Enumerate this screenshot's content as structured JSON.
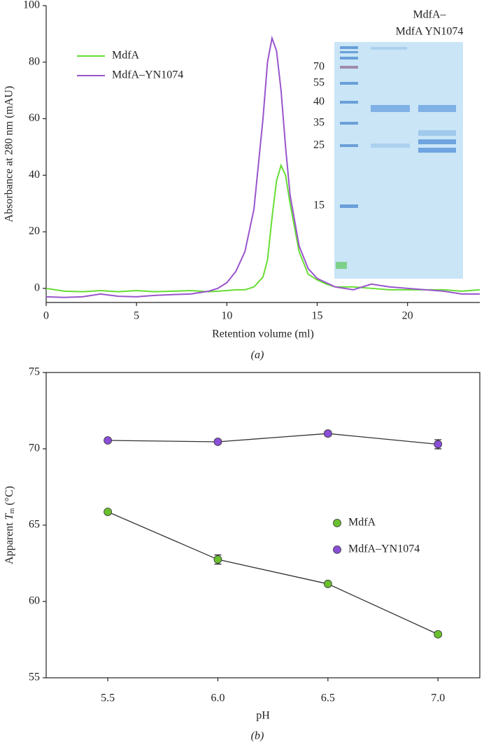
{
  "chart_data": [
    {
      "type": "line",
      "caption": "(a)",
      "xlabel": "Retention volume (ml)",
      "ylabel": "Absorbance at 280 nm (mAU)",
      "xlim": [
        0,
        24
      ],
      "ylim": [
        -5,
        100
      ],
      "xticks": [
        0,
        5,
        10,
        15,
        20
      ],
      "yticks": [
        0,
        20,
        40,
        60,
        80,
        100
      ],
      "legend": "upper left",
      "markers": false,
      "box": false,
      "x": [
        0,
        1,
        2,
        3,
        4,
        5,
        6,
        7,
        8,
        9,
        9.5,
        10,
        10.5,
        11,
        11.5,
        12,
        12.25,
        12.5,
        12.75,
        13,
        13.25,
        13.5,
        14,
        14.5,
        15,
        15.5,
        16,
        17,
        18,
        19,
        20,
        21,
        22,
        23,
        24
      ],
      "series": [
        {
          "name": "MdfA",
          "color": "#66dd33",
          "values": [
            0,
            -1,
            -1.2,
            -0.8,
            -1.2,
            -0.8,
            -1.2,
            -1,
            -0.8,
            -1.2,
            -1,
            -0.8,
            -0.5,
            -0.5,
            0.5,
            4,
            10,
            25,
            38,
            43.5,
            40,
            30,
            13,
            5,
            3,
            1.5,
            0.5,
            0.5,
            0,
            -0.5,
            -0.5,
            -0.5,
            -0.5,
            -1,
            -0.5
          ]
        },
        {
          "name": "MdfA–YN1074",
          "color": "#9955cc",
          "values": [
            -3,
            -3.2,
            -3,
            -2,
            -2.8,
            -3,
            -2.5,
            -2.2,
            -2,
            -1,
            0,
            2,
            6,
            13,
            28,
            60,
            80,
            88.5,
            84,
            70,
            50,
            33,
            15,
            7,
            3.5,
            2,
            0.5,
            -0.5,
            1.5,
            0.5,
            0,
            -0.5,
            -1,
            -2,
            -2
          ]
        }
      ],
      "inset_title": [
        "MdfA–",
        "MdfA YN1074"
      ],
      "gel_markers": [
        70,
        55,
        40,
        35,
        25,
        15
      ]
    },
    {
      "type": "line",
      "caption": "(b)",
      "xlabel": "pH",
      "ylabel": [
        "Apparent",
        "T",
        "m",
        "(°C)"
      ],
      "xlim": [
        5.22,
        7.19
      ],
      "ylim": [
        55,
        75
      ],
      "xticks": [
        5.5,
        {
          "value": 6,
          "label": "6.0"
        },
        6.5,
        {
          "value": 7,
          "label": "7.0"
        }
      ],
      "yticks": [
        55,
        60,
        65,
        70,
        75
      ],
      "legend": "center right",
      "markers": true,
      "box": true,
      "line_color": "#333333",
      "x": [
        5.5,
        6.0,
        6.5,
        7.0
      ],
      "series": [
        {
          "name": "MdfA",
          "color": "#6abf2e",
          "values": [
            65.87,
            62.75,
            61.15,
            57.85
          ],
          "errors": [
            0.1,
            0.3,
            0.1,
            0.15
          ]
        },
        {
          "name": "MdfA–YN1074",
          "color": "#8a4fd6",
          "values": [
            70.55,
            70.46,
            71.0,
            70.3
          ],
          "errors": [
            0.1,
            0.1,
            0.15,
            0.3
          ]
        }
      ]
    }
  ]
}
